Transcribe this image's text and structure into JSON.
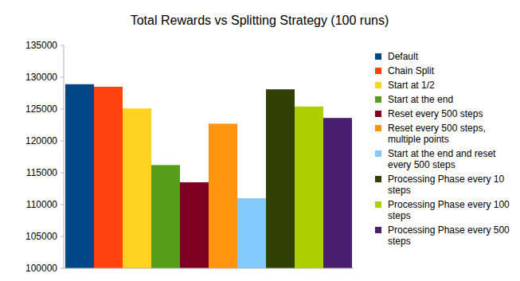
{
  "chart_data": {
    "type": "bar",
    "title": "Total Rewards vs Splitting Strategy (100 runs)",
    "categories": [
      null
    ],
    "series": [
      {
        "name": "Default",
        "color": "#004586",
        "values": [
          128900
        ]
      },
      {
        "name": "Chain Split",
        "color": "#ff420e",
        "values": [
          128500
        ]
      },
      {
        "name": "Start at 1/2",
        "color": "#ffd320",
        "values": [
          125100
        ]
      },
      {
        "name": "Start at the end",
        "color": "#579d1c",
        "values": [
          116200
        ]
      },
      {
        "name": "Reset every 500 steps",
        "color": "#7e0021",
        "values": [
          113500
        ]
      },
      {
        "name": "Reset every 500 steps, multiple points",
        "color": "#ff950e",
        "values": [
          122700
        ]
      },
      {
        "name": "Start at the end and reset every 500 steps",
        "color": "#83caff",
        "values": [
          111000
        ]
      },
      {
        "name": "Processing Phase every 10 steps",
        "color": "#314004",
        "values": [
          128100
        ]
      },
      {
        "name": "Processing Phase every 100 steps",
        "color": "#aecf00",
        "values": [
          125400
        ]
      },
      {
        "name": "Processing Phase every 500 steps",
        "color": "#4b1f6f",
        "values": [
          123600
        ]
      }
    ],
    "ylim": [
      100000,
      135000
    ],
    "yticks": [
      100000,
      105000,
      110000,
      115000,
      120000,
      125000,
      130000,
      135000
    ],
    "grid": false,
    "legend": "right",
    "tick_labels": "y"
  }
}
